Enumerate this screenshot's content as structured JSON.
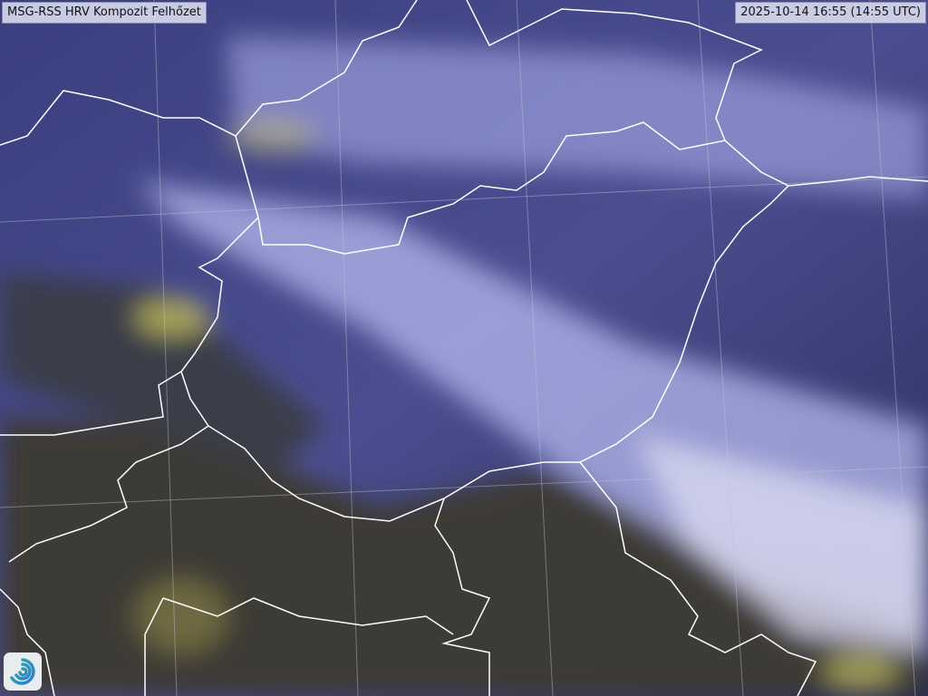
{
  "header": {
    "title": "MSG-RSS HRV Kompozit Felhőzet",
    "timestamp": "2025-10-14 16:55 (14:55 UTC)"
  },
  "map": {
    "type": "satellite cloud composite",
    "colors": {
      "cloud": "#c8ccf0",
      "ground": "#3a3a3a",
      "low_cloud": "#e8e060",
      "border": "#ffffff",
      "sea": "#1e2046"
    }
  },
  "logo": {
    "icon": "swirl-logo-icon"
  }
}
